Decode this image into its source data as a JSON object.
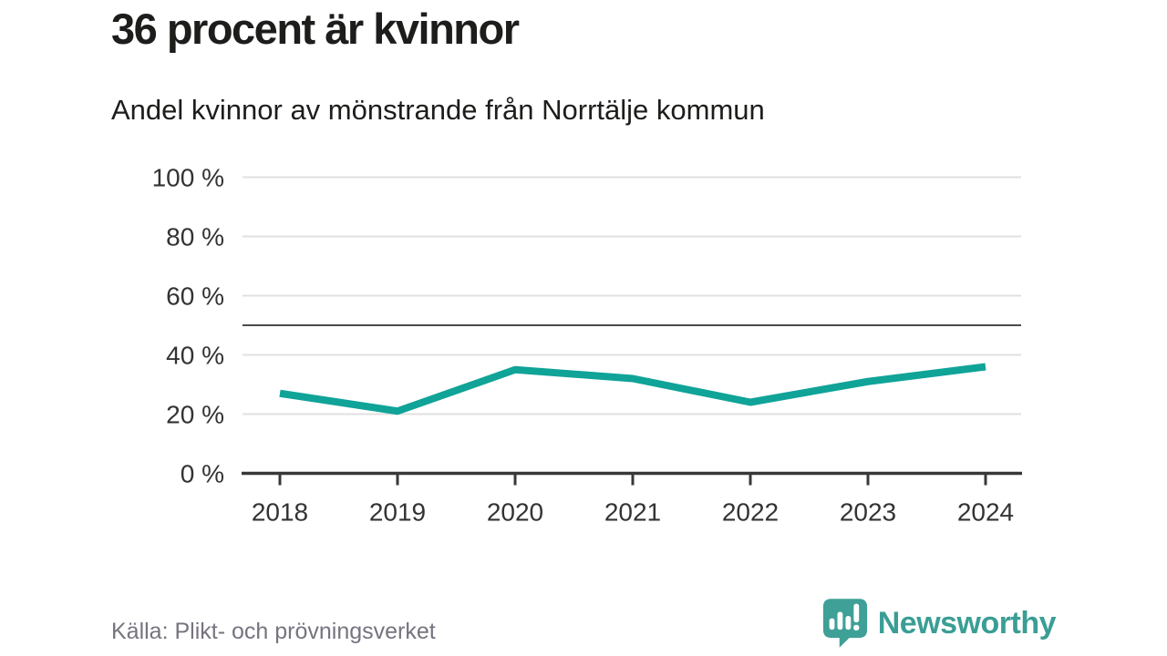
{
  "header": {
    "title": "36 procent är kvinnor",
    "subtitle": "Andel kvinnor av mönstrande från Norrtälje kommun"
  },
  "chart_data": {
    "type": "line",
    "title": "36 procent är kvinnor",
    "subtitle": "Andel kvinnor av mönstrande från Norrtälje kommun",
    "categories": [
      "2018",
      "2019",
      "2020",
      "2021",
      "2022",
      "2023",
      "2024"
    ],
    "series": [
      {
        "name": "Andel kvinnor av mönstrande",
        "values": [
          27,
          21,
          35,
          32,
          24,
          31,
          36
        ]
      }
    ],
    "unit": "%",
    "ylim": [
      0,
      100
    ],
    "yticks": [
      0,
      20,
      40,
      60,
      80,
      100
    ],
    "ytick_format": "{v} %",
    "reference_line": 50,
    "grid": true,
    "legend": "none",
    "colors": {
      "line": "#10a398",
      "grid": "#e0e0e0",
      "reference_line": "#4a4a4a",
      "axis": "#383838",
      "tick_label": "#333333"
    }
  },
  "footer": {
    "source": "Källa: Plikt- och prövningsverket",
    "brand": "Newsworthy",
    "brand_color": "#3a9e95",
    "logo_icon": "bar-chart-speech-bubble"
  }
}
